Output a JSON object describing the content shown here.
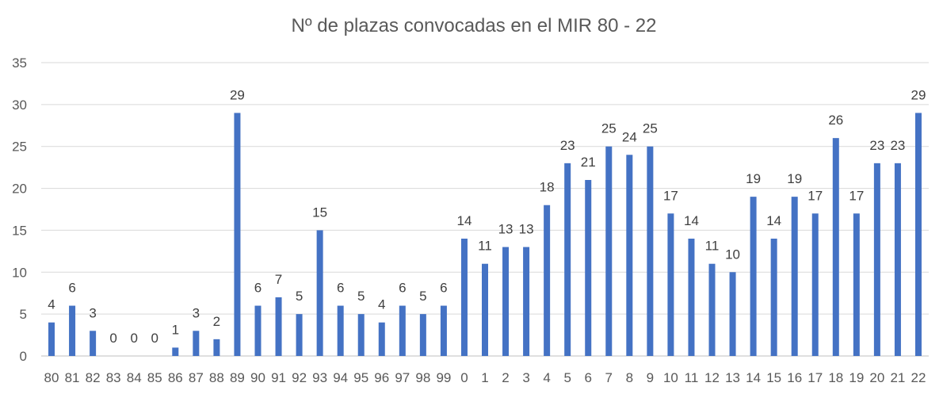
{
  "chart_data": {
    "type": "bar",
    "title": "Nº de plazas convocadas en el MIR 80 - 22",
    "xlabel": "",
    "ylabel": "",
    "ylim": [
      0,
      35
    ],
    "yticks": [
      0,
      5,
      10,
      15,
      20,
      25,
      30,
      35
    ],
    "grid": true,
    "legend": "none",
    "bar_color": "#4472C4",
    "categories": [
      "80",
      "81",
      "82",
      "83",
      "84",
      "85",
      "86",
      "87",
      "88",
      "89",
      "90",
      "91",
      "92",
      "93",
      "94",
      "95",
      "96",
      "97",
      "98",
      "99",
      "0",
      "1",
      "2",
      "3",
      "4",
      "5",
      "6",
      "7",
      "8",
      "9",
      "10",
      "11",
      "12",
      "13",
      "14",
      "15",
      "16",
      "17",
      "18",
      "19",
      "20",
      "21",
      "22"
    ],
    "values": [
      4,
      6,
      3,
      0,
      0,
      0,
      1,
      3,
      2,
      29,
      6,
      7,
      5,
      15,
      6,
      5,
      4,
      6,
      5,
      6,
      14,
      11,
      13,
      13,
      18,
      23,
      21,
      25,
      24,
      25,
      17,
      14,
      11,
      10,
      19,
      14,
      19,
      17,
      26,
      17,
      23,
      23,
      29
    ]
  }
}
